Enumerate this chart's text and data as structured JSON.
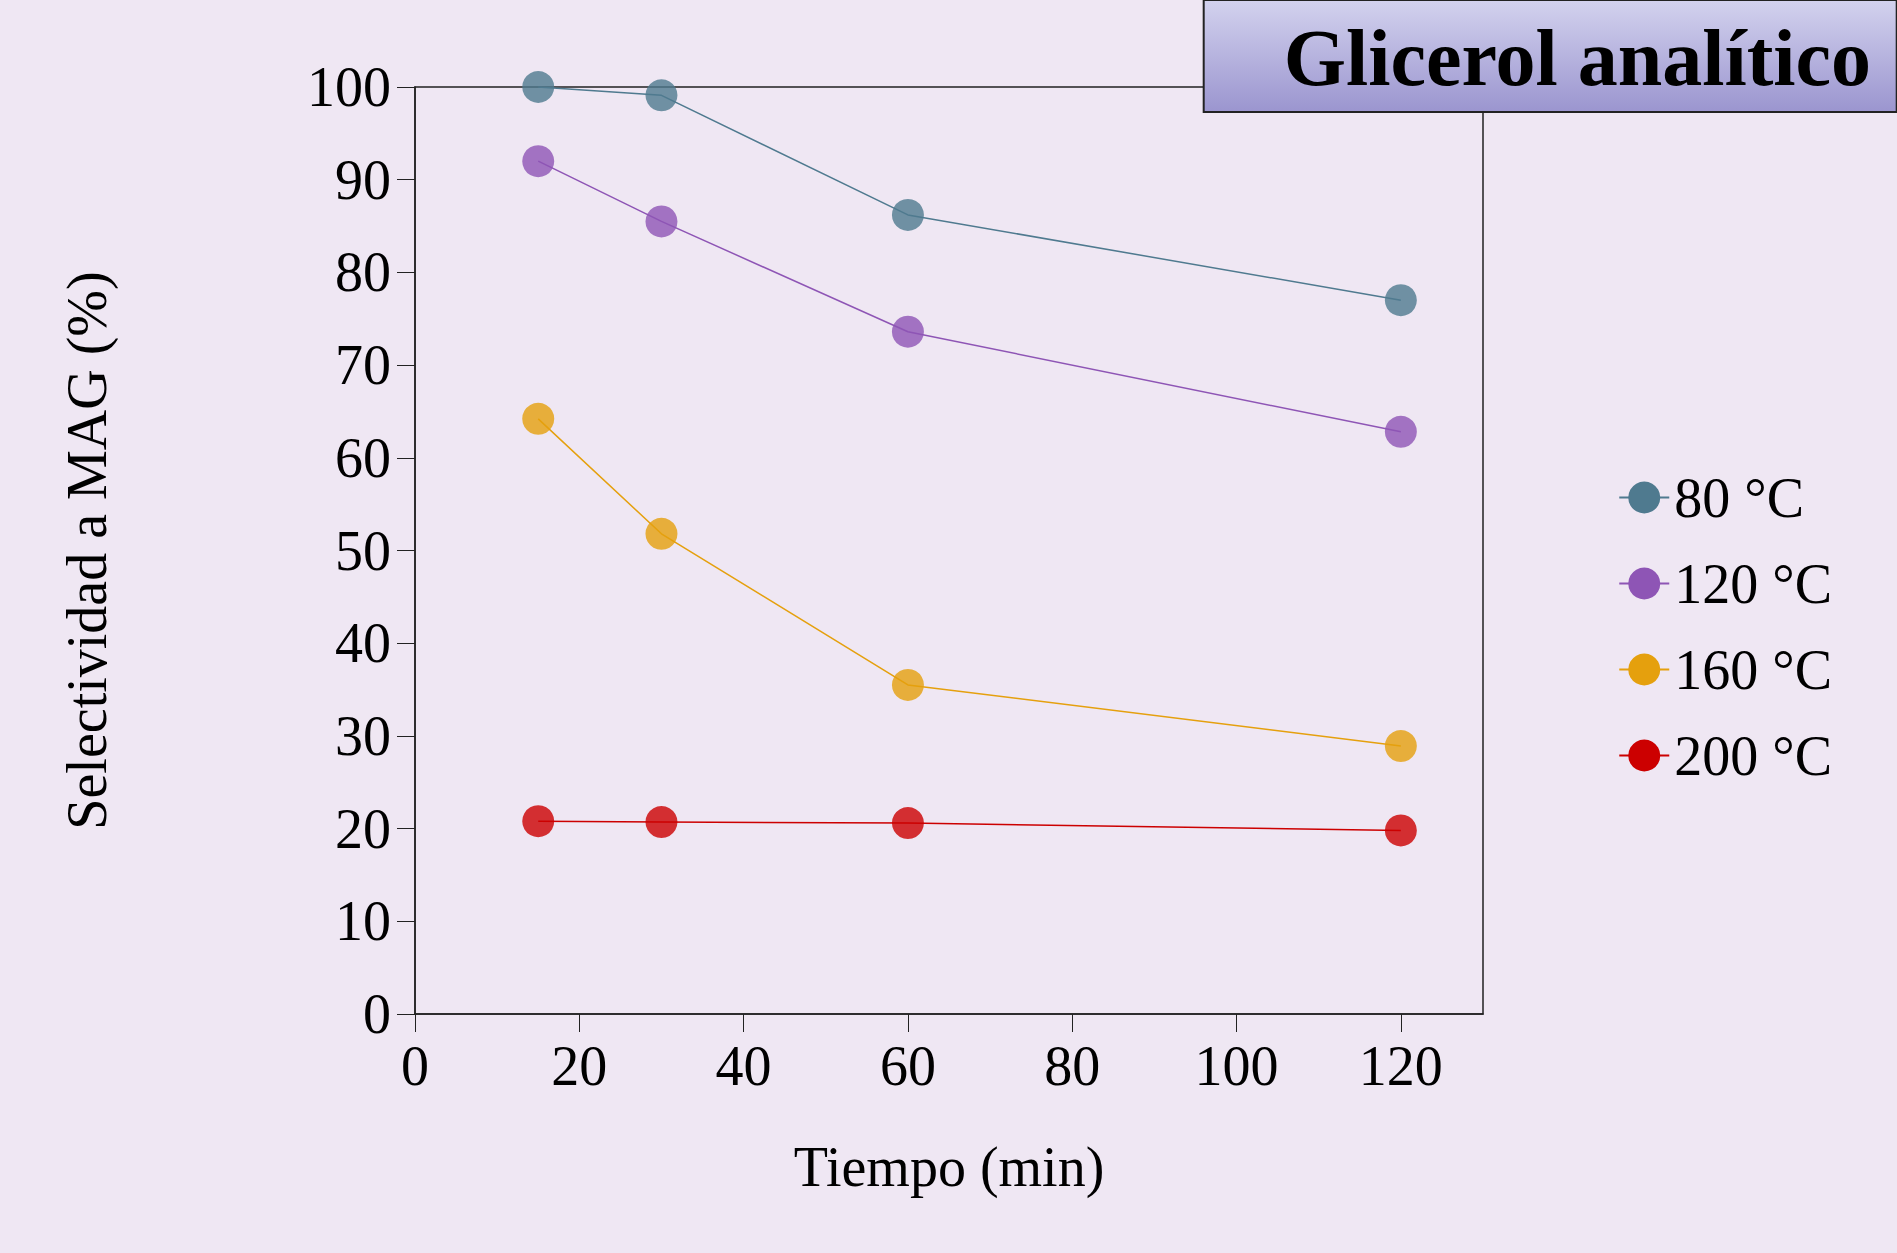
{
  "chart_data": {
    "type": "line",
    "title": "Glicerol analítico",
    "xlabel": "Tiempo (min)",
    "ylabel": "Selectividad a MAG (%)",
    "x": [
      15,
      30,
      60,
      120
    ],
    "series": [
      {
        "name": "80 °C",
        "color": "#4f7a8f",
        "values": [
          100,
          99.1,
          86.2,
          77
        ]
      },
      {
        "name": "120 °C",
        "color": "#8e55b5",
        "values": [
          92,
          85.5,
          73.6,
          62.8
        ]
      },
      {
        "name": "160 °C",
        "color": "#e5a00d",
        "values": [
          64.2,
          51.8,
          35.5,
          28.9
        ]
      },
      {
        "name": "200 °C",
        "color": "#cc0000",
        "values": [
          20.8,
          20.7,
          20.6,
          19.8
        ]
      }
    ],
    "xlim": [
      0,
      130
    ],
    "xticks": [
      0,
      20,
      40,
      60,
      80,
      100,
      120
    ],
    "ylim": [
      0,
      100
    ],
    "yticks": [
      0,
      10,
      20,
      30,
      40,
      50,
      60,
      70,
      80,
      90,
      100
    ],
    "grid": false,
    "legend": "right",
    "marker": "circle",
    "line_style": "solid"
  }
}
